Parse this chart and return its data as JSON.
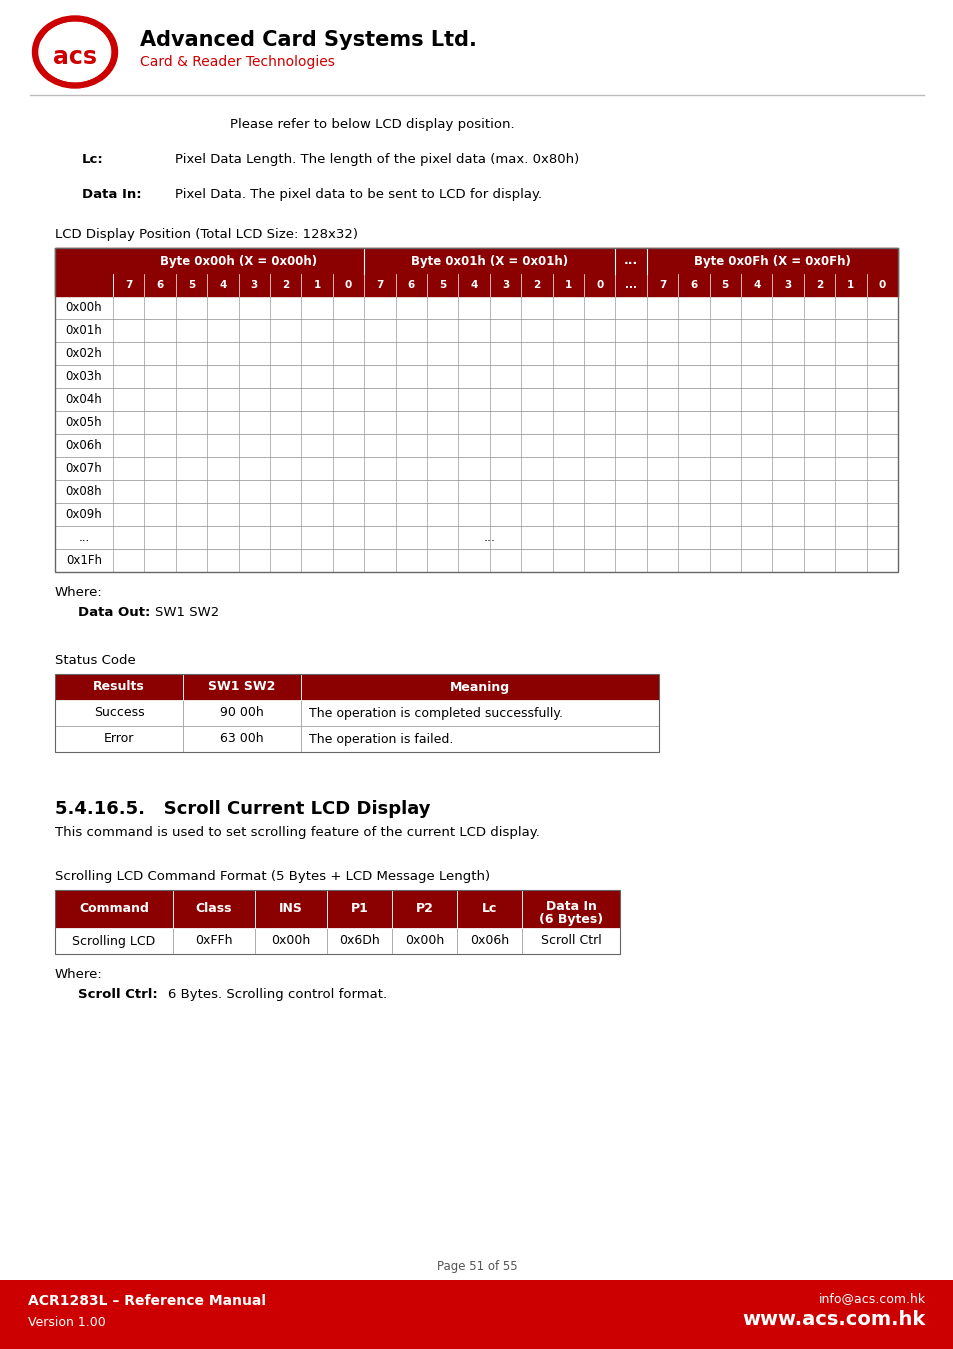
{
  "page_bg": "#ffffff",
  "dark_red": "#8B0000",
  "footer_red": "#cc0000",
  "light_red": "#cc0000",
  "header_text_color": "#ffffff",
  "body_text_color": "#000000",
  "border_color": "#888888",
  "company_name": "Advanced Card Systems Ltd.",
  "company_sub": "Card & Reader Technologies",
  "intro_text": "Please refer to below LCD display position.",
  "lc_label": "Lc:",
  "lc_text": "Pixel Data Length. The length of the pixel data (max. 0x80h)",
  "datain_label": "Data In:",
  "datain_text": "Pixel Data. The pixel data to be sent to LCD for display.",
  "lcd_table_title": "LCD Display Position (Total LCD Size: 128x32)",
  "lcd_col_headers": [
    "Byte 0x00h (X = 0x00h)",
    "Byte 0x01h (X = 0x01h)",
    "...",
    "Byte 0x0Fh (X = 0x0Fh)"
  ],
  "lcd_row_labels": [
    "0x00h",
    "0x01h",
    "0x02h",
    "0x03h",
    "0x04h",
    "0x05h",
    "0x06h",
    "0x07h",
    "0x08h",
    "0x09h",
    "...",
    "0x1Fh"
  ],
  "where_text": "Where:",
  "dataout_label": "Data Out:",
  "dataout_text": "SW1 SW2",
  "status_title": "Status Code",
  "status_headers": [
    "Results",
    "SW1 SW2",
    "Meaning"
  ],
  "status_rows": [
    [
      "Success",
      "90 00h",
      "The operation is completed successfully."
    ],
    [
      "Error",
      "63 00h",
      "The operation is failed."
    ]
  ],
  "section_title": "5.4.16.5.   Scroll Current LCD Display",
  "section_text": "This command is used to set scrolling feature of the current LCD display.",
  "cmd_table_title": "Scrolling LCD Command Format (5 Bytes + LCD Message Length)",
  "cmd_headers": [
    "Command",
    "Class",
    "INS",
    "P1",
    "P2",
    "Lc",
    "Data In\n(6 Bytes)"
  ],
  "cmd_row": [
    "Scrolling LCD",
    "0xFFh",
    "0x00h",
    "0x6Dh",
    "0x00h",
    "0x06h",
    "Scroll Ctrl"
  ],
  "where2_text": "Where:",
  "scrollctrl_label": "Scroll Ctrl:",
  "scrollctrl_text": "6 Bytes. Scrolling control format.",
  "page_text": "Page 51 of 55",
  "footer_left1": "ACR1283L – Reference Manual",
  "footer_left2": "Version 1.00",
  "footer_right1": "info@acs.com.hk",
  "footer_right2": "www.acs.com.hk"
}
